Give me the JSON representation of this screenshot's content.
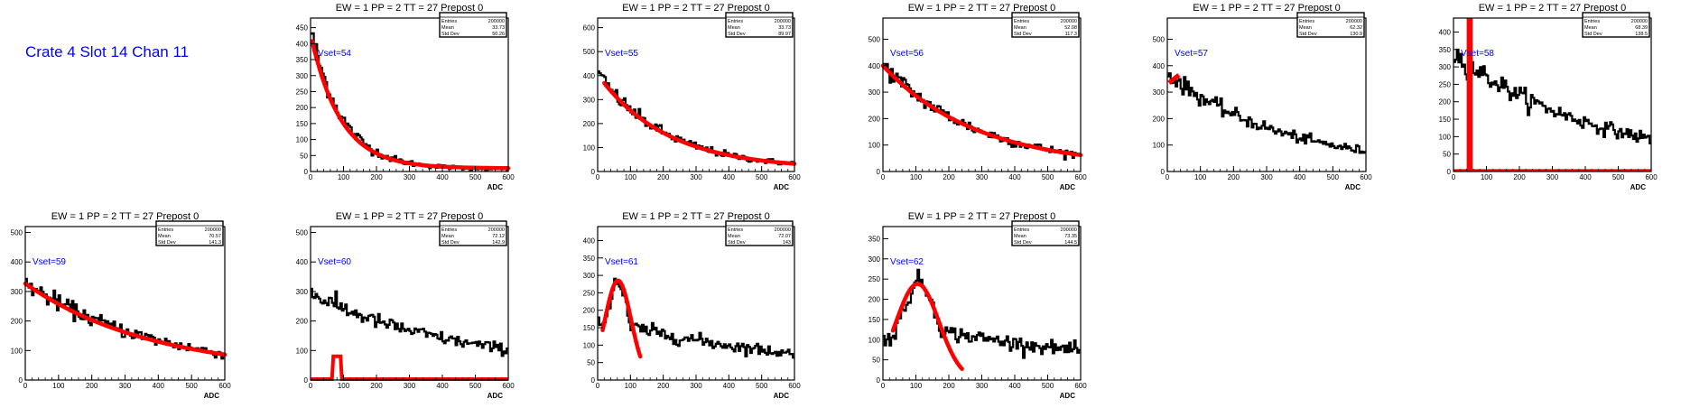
{
  "page_title": "Crate 4 Slot 14 Chan 11",
  "colors": {
    "hist": "#000000",
    "fit": "#ff0000",
    "annotation": "#0000ff"
  },
  "stats_labels": {
    "entries": "Entries",
    "mean": "Mean",
    "std": "Std Dev"
  },
  "chart_data": [
    {
      "type": "histogram",
      "title": "EW = 1 PP = 2 TT = 27 Prepost 0",
      "xlabel": "ADC",
      "ylabel": "",
      "annotation": "Vset=54",
      "xlim": [
        0,
        600
      ],
      "ylim": [
        0,
        480
      ],
      "xticks": [
        0,
        100,
        200,
        300,
        400,
        500,
        600
      ],
      "yticks": [
        0,
        50,
        100,
        150,
        200,
        250,
        300,
        350,
        400,
        450
      ],
      "stats": {
        "entries": "200000",
        "mean": "33.73",
        "std": "50.26"
      },
      "model": {
        "kind": "exp",
        "a": 440,
        "b": -0.0105,
        "c": 8
      },
      "fit": {
        "kind": "exp",
        "a": 420,
        "b": -0.011,
        "c": 10,
        "x0": 5,
        "x1": 600
      }
    },
    {
      "type": "histogram",
      "title": "EW = 1 PP = 2 TT = 27 Prepost 0",
      "xlabel": "ADC",
      "ylabel": "",
      "annotation": "Vset=55",
      "xlim": [
        0,
        600
      ],
      "ylim": [
        0,
        640
      ],
      "xticks": [
        0,
        100,
        200,
        300,
        400,
        500,
        600
      ],
      "yticks": [
        0,
        100,
        200,
        300,
        400,
        500,
        600
      ],
      "stats": {
        "entries": "200000",
        "mean": "33.73",
        "std": "89.97"
      },
      "model": {
        "kind": "exp",
        "a": 400,
        "b": -0.0048,
        "c": 10
      },
      "fit": {
        "kind": "exp",
        "a": 395,
        "b": -0.0048,
        "c": 10,
        "x0": 20,
        "x1": 600
      }
    },
    {
      "type": "histogram",
      "title": "EW = 1 PP = 2 TT = 27 Prepost 0",
      "xlabel": "ADC",
      "ylabel": "",
      "annotation": "Vset=56",
      "xlim": [
        0,
        600
      ],
      "ylim": [
        0,
        580
      ],
      "xticks": [
        0,
        100,
        200,
        300,
        400,
        500,
        600
      ],
      "yticks": [
        0,
        100,
        200,
        300,
        400,
        500
      ],
      "stats": {
        "entries": "200000",
        "mean": "52.08",
        "std": "117.3"
      },
      "model": {
        "kind": "exp",
        "a": 390,
        "b": -0.0035,
        "c": 15
      },
      "fit": {
        "kind": "exp",
        "a": 385,
        "b": -0.0035,
        "c": 15,
        "x0": 0,
        "x1": 600
      }
    },
    {
      "type": "histogram",
      "title": "EW = 1 PP = 2 TT = 27 Prepost 0",
      "xlabel": "ADC",
      "ylabel": "",
      "annotation": "Vset=57",
      "xlim": [
        0,
        600
      ],
      "ylim": [
        0,
        580
      ],
      "xticks": [
        0,
        100,
        200,
        300,
        400,
        500,
        600
      ],
      "yticks": [
        0,
        100,
        200,
        300,
        400,
        500
      ],
      "stats": {
        "entries": "200000",
        "mean": "62.32",
        "std": "130.9"
      },
      "model": {
        "kind": "exp",
        "a": 360,
        "b": -0.0028,
        "c": 10
      },
      "fit": {
        "kind": "line",
        "x0": 5,
        "y0": 335,
        "x1": 35,
        "y1": 365
      }
    },
    {
      "type": "histogram",
      "title": "EW = 1 PP = 2 TT = 27 Prepost 0",
      "xlabel": "ADC",
      "ylabel": "",
      "annotation": "Vset=58",
      "xlim": [
        0,
        600
      ],
      "ylim": [
        0,
        440
      ],
      "xticks": [
        0,
        100,
        200,
        300,
        400,
        500,
        600
      ],
      "yticks": [
        0,
        50,
        100,
        150,
        200,
        250,
        300,
        350,
        400
      ],
      "stats": {
        "entries": "200000",
        "mean": "68.39",
        "std": "138.5"
      },
      "model": {
        "kind": "exp",
        "a": 330,
        "b": -0.0023,
        "c": 10
      },
      "fit": {
        "kind": "spike",
        "x0": 40,
        "x1": 58,
        "base": 3
      }
    },
    {
      "type": "histogram",
      "title": "EW = 1 PP = 2 TT = 27 Prepost 0",
      "xlabel": "ADC",
      "ylabel": "",
      "annotation": "Vset=59",
      "xlim": [
        0,
        600
      ],
      "ylim": [
        0,
        520
      ],
      "xticks": [
        0,
        100,
        200,
        300,
        400,
        500,
        600
      ],
      "yticks": [
        0,
        100,
        200,
        300,
        400,
        500
      ],
      "stats": {
        "entries": "200000",
        "mean": "70.57",
        "std": "141.3"
      },
      "model": {
        "kind": "exp",
        "a": 310,
        "b": -0.0025,
        "c": 20
      },
      "fit": {
        "kind": "exp",
        "a": 305,
        "b": -0.0026,
        "c": 22,
        "x0": 0,
        "x1": 600
      }
    },
    {
      "type": "histogram",
      "title": "EW = 1 PP = 2 TT = 27 Prepost 0",
      "xlabel": "ADC",
      "ylabel": "",
      "annotation": "Vset=60",
      "xlim": [
        0,
        600
      ],
      "ylim": [
        0,
        520
      ],
      "xticks": [
        0,
        100,
        200,
        300,
        400,
        500,
        600
      ],
      "yticks": [
        0,
        100,
        200,
        300,
        400,
        500
      ],
      "stats": {
        "entries": "200000",
        "mean": "72.12",
        "std": "142.9"
      },
      "model": {
        "kind": "exp",
        "a": 260,
        "b": -0.002,
        "c": 25,
        "bump": [
          20,
          110,
          8
        ]
      },
      "fit": {
        "kind": "peak",
        "x0": 65,
        "x1": 95,
        "peak": 80,
        "base": 3
      }
    },
    {
      "type": "histogram",
      "title": "EW = 1 PP = 2 TT = 27 Prepost 0",
      "xlabel": "ADC",
      "ylabel": "",
      "annotation": "Vset=61",
      "xlim": [
        0,
        600
      ],
      "ylim": [
        0,
        440
      ],
      "xticks": [
        0,
        100,
        200,
        300,
        400,
        500,
        600
      ],
      "yticks": [
        0,
        50,
        100,
        150,
        200,
        250,
        300,
        350,
        400
      ],
      "stats": {
        "entries": "200000",
        "mean": "72.07",
        "std": "143"
      },
      "model": {
        "kind": "peak",
        "mu": 60,
        "sigma": 35,
        "h": 280,
        "floor": 160,
        "decay": 0.0014,
        "low": 170
      },
      "fit": {
        "kind": "gauss",
        "mu": 62,
        "sigma": 40,
        "h": 285,
        "x0": 15,
        "x1": 130
      }
    },
    {
      "type": "histogram",
      "title": "EW = 1 PP = 2 TT = 27 Prepost 0",
      "xlabel": "ADC",
      "ylabel": "",
      "annotation": "Vset=62",
      "xlim": [
        0,
        600
      ],
      "ylim": [
        0,
        380
      ],
      "xticks": [
        0,
        100,
        200,
        300,
        400,
        500,
        600
      ],
      "yticks": [
        0,
        50,
        100,
        150,
        200,
        250,
        300,
        350
      ],
      "stats": {
        "entries": "200000",
        "mean": "73.35",
        "std": "144.5"
      },
      "model": {
        "kind": "peak",
        "mu": 110,
        "sigma": 60,
        "h": 240,
        "floor": 130,
        "decay": 0.0012,
        "low": 100
      },
      "fit": {
        "kind": "gauss",
        "mu": 105,
        "sigma": 65,
        "h": 238,
        "x0": 30,
        "x1": 240
      }
    }
  ]
}
